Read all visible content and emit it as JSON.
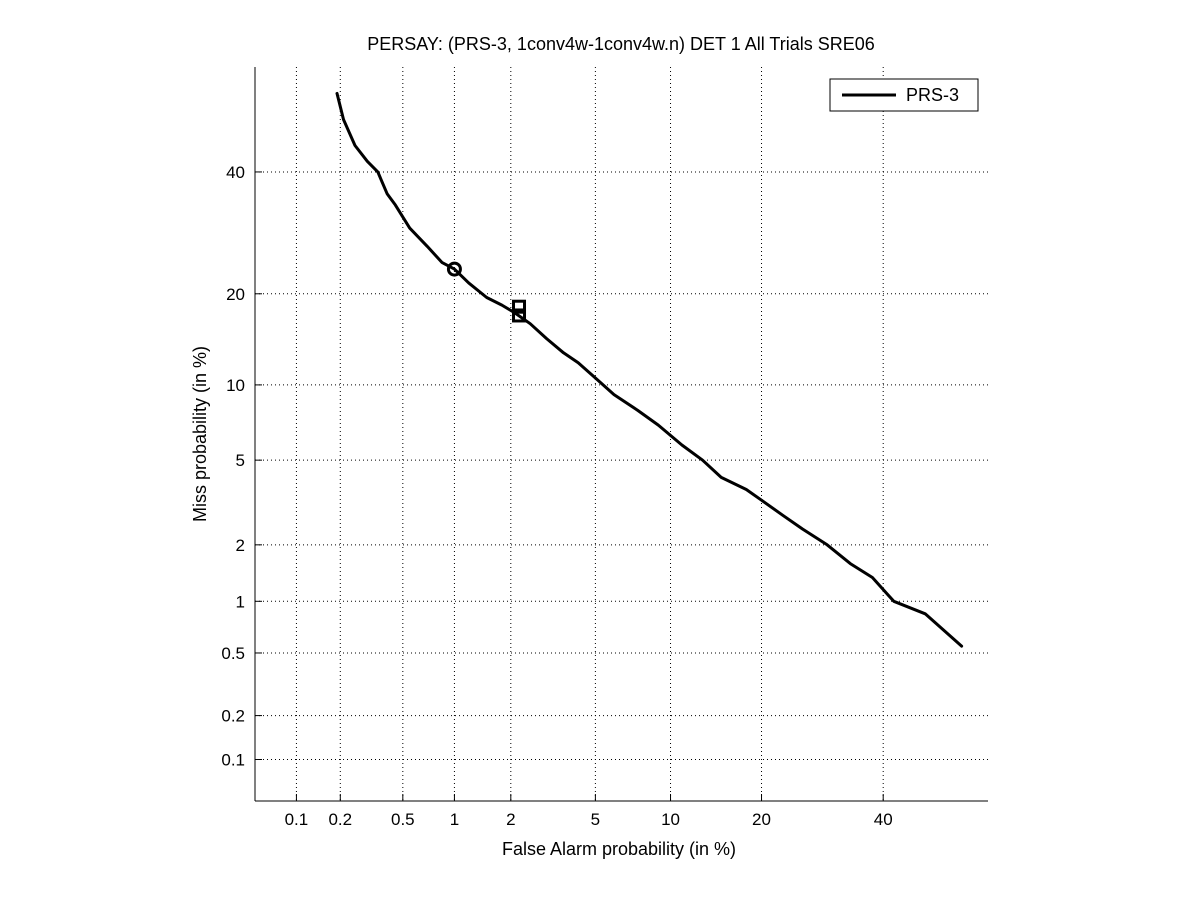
{
  "chart_data": {
    "type": "line",
    "title": "PERSAY: (PRS-3, 1conv4w-1conv4w.n) DET 1 All Trials SRE06",
    "xlabel": "False Alarm probability (in %)",
    "ylabel": "Miss probability (in %)",
    "x_scale": "normal-deviate",
    "y_scale": "normal-deviate",
    "xlim": [
      0.05,
      60
    ],
    "ylim": [
      0.05,
      60
    ],
    "x_ticks": [
      0.1,
      0.2,
      0.5,
      1,
      2,
      5,
      10,
      20,
      40
    ],
    "x_tick_labels": [
      "0.1",
      "0.2",
      "0.5",
      "1",
      "2",
      "5",
      "10",
      "20",
      "40"
    ],
    "y_ticks": [
      0.1,
      0.2,
      0.5,
      1,
      2,
      5,
      10,
      20,
      40
    ],
    "y_tick_labels": [
      "0.1",
      "0.2",
      "0.5",
      "1",
      "2",
      "5",
      "10",
      "20",
      "40"
    ],
    "grid": true,
    "legend_position": "top-right",
    "series": [
      {
        "name": "PRS-3",
        "color": "#000000",
        "x": [
          0.19,
          0.21,
          0.25,
          0.3,
          0.35,
          0.4,
          0.45,
          0.55,
          0.7,
          0.85,
          1.0,
          1.2,
          1.5,
          1.8,
          2.1,
          2.5,
          3.0,
          3.6,
          4.2,
          5.0,
          6.0,
          7.5,
          9.0,
          11,
          13,
          15,
          18,
          20,
          23,
          26,
          30,
          34,
          38,
          42,
          48,
          55
        ],
        "y": [
          55,
          50,
          45,
          42,
          40,
          36,
          34,
          30,
          27,
          24.5,
          23.5,
          21.5,
          19.5,
          18.5,
          17.5,
          16.2,
          14.5,
          13.0,
          12.0,
          10.6,
          9.2,
          8.0,
          7.0,
          5.8,
          5.0,
          4.2,
          3.7,
          3.3,
          2.8,
          2.4,
          2.0,
          1.6,
          1.35,
          1.0,
          0.85,
          0.55
        ]
      }
    ],
    "markers": [
      {
        "shape": "circle",
        "x": 1.0,
        "y": 23.5
      },
      {
        "shape": "square",
        "x": 2.2,
        "y": 18.3
      },
      {
        "shape": "square",
        "x": 2.2,
        "y": 17.2
      }
    ]
  }
}
